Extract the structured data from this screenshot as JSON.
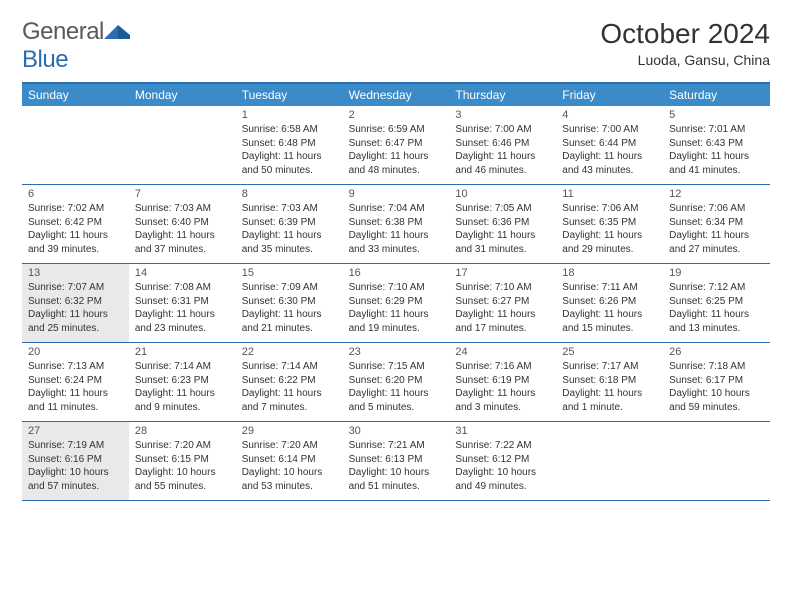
{
  "brand": {
    "name_a": "General",
    "name_b": "Blue"
  },
  "title": "October 2024",
  "location": "Luoda, Gansu, China",
  "colors": {
    "header_bg": "#3b8bc9",
    "border": "#2a6db0",
    "shade": "#e9e9e9"
  },
  "dow": [
    "Sunday",
    "Monday",
    "Tuesday",
    "Wednesday",
    "Thursday",
    "Friday",
    "Saturday"
  ],
  "weeks": [
    [
      {
        "n": "",
        "sr": "",
        "ss": "",
        "dl": ""
      },
      {
        "n": "",
        "sr": "",
        "ss": "",
        "dl": ""
      },
      {
        "n": "1",
        "sr": "Sunrise: 6:58 AM",
        "ss": "Sunset: 6:48 PM",
        "dl": "Daylight: 11 hours and 50 minutes."
      },
      {
        "n": "2",
        "sr": "Sunrise: 6:59 AM",
        "ss": "Sunset: 6:47 PM",
        "dl": "Daylight: 11 hours and 48 minutes."
      },
      {
        "n": "3",
        "sr": "Sunrise: 7:00 AM",
        "ss": "Sunset: 6:46 PM",
        "dl": "Daylight: 11 hours and 46 minutes."
      },
      {
        "n": "4",
        "sr": "Sunrise: 7:00 AM",
        "ss": "Sunset: 6:44 PM",
        "dl": "Daylight: 11 hours and 43 minutes."
      },
      {
        "n": "5",
        "sr": "Sunrise: 7:01 AM",
        "ss": "Sunset: 6:43 PM",
        "dl": "Daylight: 11 hours and 41 minutes."
      }
    ],
    [
      {
        "n": "6",
        "sr": "Sunrise: 7:02 AM",
        "ss": "Sunset: 6:42 PM",
        "dl": "Daylight: 11 hours and 39 minutes."
      },
      {
        "n": "7",
        "sr": "Sunrise: 7:03 AM",
        "ss": "Sunset: 6:40 PM",
        "dl": "Daylight: 11 hours and 37 minutes."
      },
      {
        "n": "8",
        "sr": "Sunrise: 7:03 AM",
        "ss": "Sunset: 6:39 PM",
        "dl": "Daylight: 11 hours and 35 minutes."
      },
      {
        "n": "9",
        "sr": "Sunrise: 7:04 AM",
        "ss": "Sunset: 6:38 PM",
        "dl": "Daylight: 11 hours and 33 minutes."
      },
      {
        "n": "10",
        "sr": "Sunrise: 7:05 AM",
        "ss": "Sunset: 6:36 PM",
        "dl": "Daylight: 11 hours and 31 minutes."
      },
      {
        "n": "11",
        "sr": "Sunrise: 7:06 AM",
        "ss": "Sunset: 6:35 PM",
        "dl": "Daylight: 11 hours and 29 minutes."
      },
      {
        "n": "12",
        "sr": "Sunrise: 7:06 AM",
        "ss": "Sunset: 6:34 PM",
        "dl": "Daylight: 11 hours and 27 minutes."
      }
    ],
    [
      {
        "n": "13",
        "sr": "Sunrise: 7:07 AM",
        "ss": "Sunset: 6:32 PM",
        "dl": "Daylight: 11 hours and 25 minutes."
      },
      {
        "n": "14",
        "sr": "Sunrise: 7:08 AM",
        "ss": "Sunset: 6:31 PM",
        "dl": "Daylight: 11 hours and 23 minutes."
      },
      {
        "n": "15",
        "sr": "Sunrise: 7:09 AM",
        "ss": "Sunset: 6:30 PM",
        "dl": "Daylight: 11 hours and 21 minutes."
      },
      {
        "n": "16",
        "sr": "Sunrise: 7:10 AM",
        "ss": "Sunset: 6:29 PM",
        "dl": "Daylight: 11 hours and 19 minutes."
      },
      {
        "n": "17",
        "sr": "Sunrise: 7:10 AM",
        "ss": "Sunset: 6:27 PM",
        "dl": "Daylight: 11 hours and 17 minutes."
      },
      {
        "n": "18",
        "sr": "Sunrise: 7:11 AM",
        "ss": "Sunset: 6:26 PM",
        "dl": "Daylight: 11 hours and 15 minutes."
      },
      {
        "n": "19",
        "sr": "Sunrise: 7:12 AM",
        "ss": "Sunset: 6:25 PM",
        "dl": "Daylight: 11 hours and 13 minutes."
      }
    ],
    [
      {
        "n": "20",
        "sr": "Sunrise: 7:13 AM",
        "ss": "Sunset: 6:24 PM",
        "dl": "Daylight: 11 hours and 11 minutes."
      },
      {
        "n": "21",
        "sr": "Sunrise: 7:14 AM",
        "ss": "Sunset: 6:23 PM",
        "dl": "Daylight: 11 hours and 9 minutes."
      },
      {
        "n": "22",
        "sr": "Sunrise: 7:14 AM",
        "ss": "Sunset: 6:22 PM",
        "dl": "Daylight: 11 hours and 7 minutes."
      },
      {
        "n": "23",
        "sr": "Sunrise: 7:15 AM",
        "ss": "Sunset: 6:20 PM",
        "dl": "Daylight: 11 hours and 5 minutes."
      },
      {
        "n": "24",
        "sr": "Sunrise: 7:16 AM",
        "ss": "Sunset: 6:19 PM",
        "dl": "Daylight: 11 hours and 3 minutes."
      },
      {
        "n": "25",
        "sr": "Sunrise: 7:17 AM",
        "ss": "Sunset: 6:18 PM",
        "dl": "Daylight: 11 hours and 1 minute."
      },
      {
        "n": "26",
        "sr": "Sunrise: 7:18 AM",
        "ss": "Sunset: 6:17 PM",
        "dl": "Daylight: 10 hours and 59 minutes."
      }
    ],
    [
      {
        "n": "27",
        "sr": "Sunrise: 7:19 AM",
        "ss": "Sunset: 6:16 PM",
        "dl": "Daylight: 10 hours and 57 minutes."
      },
      {
        "n": "28",
        "sr": "Sunrise: 7:20 AM",
        "ss": "Sunset: 6:15 PM",
        "dl": "Daylight: 10 hours and 55 minutes."
      },
      {
        "n": "29",
        "sr": "Sunrise: 7:20 AM",
        "ss": "Sunset: 6:14 PM",
        "dl": "Daylight: 10 hours and 53 minutes."
      },
      {
        "n": "30",
        "sr": "Sunrise: 7:21 AM",
        "ss": "Sunset: 6:13 PM",
        "dl": "Daylight: 10 hours and 51 minutes."
      },
      {
        "n": "31",
        "sr": "Sunrise: 7:22 AM",
        "ss": "Sunset: 6:12 PM",
        "dl": "Daylight: 10 hours and 49 minutes."
      },
      {
        "n": "",
        "sr": "",
        "ss": "",
        "dl": ""
      },
      {
        "n": "",
        "sr": "",
        "ss": "",
        "dl": ""
      }
    ]
  ],
  "shaded_days": [
    "13",
    "27"
  ]
}
